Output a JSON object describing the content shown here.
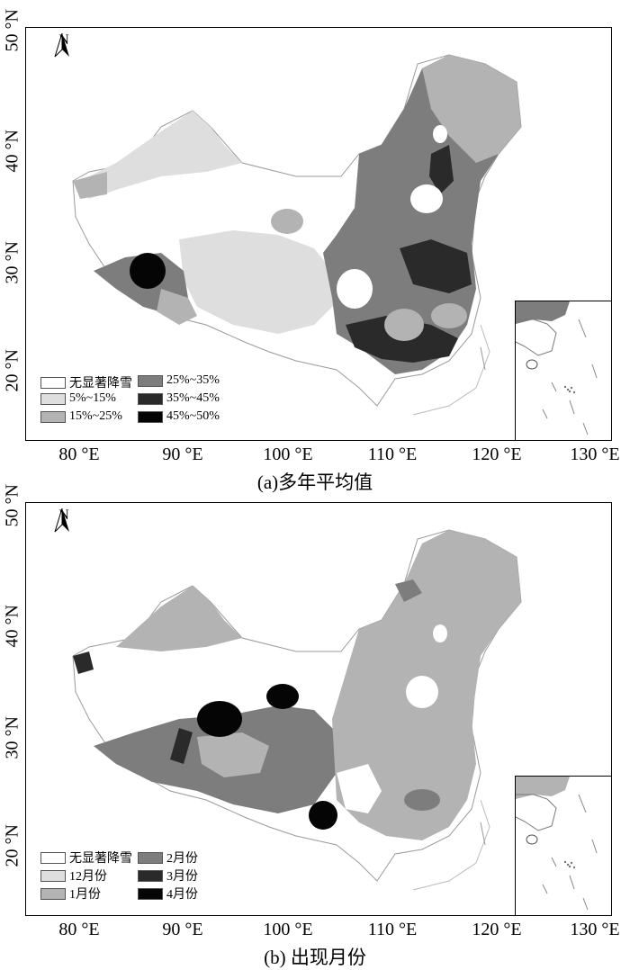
{
  "panels": [
    {
      "caption": "(a)多年平均值",
      "lat_labels": [
        "50 °N",
        "40 °N",
        "30 °N",
        "20 °N"
      ],
      "lon_labels": [
        "80 °E",
        "90 °E",
        "100 °E",
        "110 °E",
        "120 °E",
        "130 °E"
      ],
      "north": "N",
      "legend": [
        {
          "label": "无显著降雪",
          "color": "#ffffff"
        },
        {
          "label": "5%~15%",
          "color": "#dedede"
        },
        {
          "label": "15%~25%",
          "color": "#b3b3b3"
        },
        {
          "label": "25%~35%",
          "color": "#7d7d7d"
        },
        {
          "label": "35%~45%",
          "color": "#2a2a2a"
        },
        {
          "label": "45%~50%",
          "color": "#050505"
        }
      ]
    },
    {
      "caption": "(b) 出现月份",
      "lat_labels": [
        "50 °N",
        "40 °N",
        "30 °N",
        "20 °N"
      ],
      "lon_labels": [
        "80 °E",
        "90 °E",
        "100 °E",
        "110 °E",
        "120 °E",
        "130 °E"
      ],
      "north": "N",
      "legend": [
        {
          "label": "无显著降雪",
          "color": "#ffffff"
        },
        {
          "label": "12月份",
          "color": "#dedede"
        },
        {
          "label": "1月份",
          "color": "#b3b3b3"
        },
        {
          "label": "2月份",
          "color": "#7d7d7d"
        },
        {
          "label": "3月份",
          "color": "#2a2a2a"
        },
        {
          "label": "4月份",
          "color": "#050505"
        }
      ]
    }
  ]
}
